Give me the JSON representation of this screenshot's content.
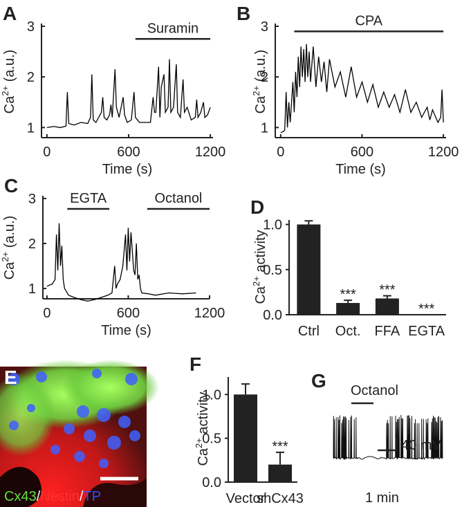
{
  "chart_data": [
    {
      "type": "line",
      "panel": "A",
      "xlabel": "Time (s)",
      "ylabel": [
        "Ca",
        "2+",
        " (a.u.)"
      ],
      "xlim": [
        -40,
        1220
      ],
      "ylim": [
        0.8,
        3
      ],
      "xticks": [
        0,
        600,
        1200
      ],
      "yticks": [
        1,
        2,
        3
      ],
      "color": "#000000",
      "annotations": [
        {
          "label": "Suramin",
          "start": 650,
          "end": 1200,
          "level": 2.75
        }
      ],
      "x": [
        0,
        50,
        100,
        140,
        150,
        160,
        200,
        250,
        300,
        320,
        330,
        340,
        360,
        400,
        410,
        420,
        440,
        460,
        470,
        480,
        500,
        510,
        530,
        560,
        570,
        590,
        620,
        640,
        650,
        680,
        720,
        760,
        780,
        790,
        800,
        820,
        830,
        840,
        860,
        870,
        890,
        900,
        910,
        930,
        950,
        960,
        980,
        1000,
        1010,
        1030,
        1060,
        1090,
        1100,
        1110,
        1130,
        1150,
        1160,
        1180,
        1200
      ],
      "values": [
        1.0,
        1.02,
        1.0,
        1.03,
        1.7,
        1.08,
        1.05,
        1.1,
        1.08,
        1.2,
        2.05,
        1.15,
        1.1,
        1.3,
        1.6,
        1.2,
        1.15,
        1.25,
        1.45,
        1.2,
        2.15,
        1.4,
        1.2,
        1.6,
        1.25,
        1.1,
        1.15,
        1.7,
        1.2,
        1.1,
        1.1,
        1.1,
        1.6,
        1.3,
        1.3,
        2.2,
        1.2,
        1.8,
        2.05,
        1.3,
        1.4,
        2.35,
        1.3,
        1.4,
        2.25,
        1.3,
        1.2,
        1.95,
        1.3,
        1.4,
        1.15,
        1.2,
        1.55,
        1.2,
        1.3,
        1.5,
        1.2,
        1.25,
        1.4
      ]
    },
    {
      "type": "line",
      "panel": "B",
      "xlabel": "Time (s)",
      "ylabel": [
        "Ca",
        "2+",
        " (a.u.)"
      ],
      "xlim": [
        -40,
        1220
      ],
      "ylim": [
        0.8,
        3
      ],
      "xticks": [
        0,
        600,
        1200
      ],
      "yticks": [
        1,
        2,
        3
      ],
      "color": "#000000",
      "annotations": [
        {
          "label": "CPA",
          "start": 100,
          "end": 1200,
          "level": 2.9
        }
      ],
      "x": [
        0,
        20,
        30,
        40,
        50,
        60,
        70,
        90,
        100,
        110,
        120,
        130,
        140,
        150,
        160,
        170,
        180,
        190,
        200,
        210,
        220,
        240,
        260,
        280,
        300,
        320,
        340,
        360,
        400,
        440,
        480,
        520,
        560,
        600,
        640,
        680,
        720,
        760,
        800,
        840,
        880,
        920,
        960,
        1000,
        1040,
        1080,
        1100,
        1120,
        1160,
        1180,
        1190,
        1200
      ],
      "values": [
        0.9,
        0.92,
        0.95,
        1.7,
        1.0,
        1.5,
        1.1,
        1.9,
        1.3,
        2.1,
        1.6,
        2.4,
        1.8,
        2.6,
        2.0,
        2.55,
        1.9,
        2.65,
        2.0,
        2.5,
        1.9,
        2.6,
        1.8,
        2.4,
        1.9,
        2.3,
        1.7,
        2.35,
        1.8,
        2.1,
        1.6,
        2.2,
        1.6,
        1.9,
        1.5,
        1.85,
        1.4,
        1.7,
        1.4,
        1.65,
        1.3,
        1.75,
        1.3,
        1.5,
        1.2,
        1.4,
        1.15,
        1.35,
        1.1,
        1.2,
        1.75,
        1.1
      ]
    },
    {
      "type": "line",
      "panel": "C",
      "xlabel": "Time (s)",
      "ylabel": [
        "Ca",
        "2+",
        " (a.u.)"
      ],
      "xlim": [
        -30,
        1200
      ],
      "ylim": [
        0.77,
        3
      ],
      "xticks": [
        0,
        600,
        1200
      ],
      "yticks": [
        1,
        2,
        3
      ],
      "color": "#000000",
      "annotations": [
        {
          "label": "EGTA",
          "start": 150,
          "end": 460,
          "level": 2.77
        },
        {
          "label": "Octanol",
          "start": 740,
          "end": 1200,
          "level": 2.77
        }
      ],
      "x": [
        0,
        40,
        60,
        70,
        80,
        90,
        100,
        110,
        120,
        130,
        140,
        160,
        200,
        250,
        300,
        350,
        400,
        450,
        480,
        500,
        510,
        520,
        540,
        560,
        580,
        590,
        600,
        610,
        620,
        640,
        650,
        660,
        670,
        680,
        690,
        700,
        750,
        800,
        900,
        1000,
        1100
      ],
      "values": [
        1.05,
        1.1,
        1.2,
        2.2,
        1.4,
        2.45,
        1.5,
        1.95,
        1.2,
        1.0,
        0.95,
        0.85,
        0.8,
        0.75,
        0.72,
        0.75,
        0.8,
        0.85,
        0.9,
        1.5,
        1.0,
        1.1,
        1.2,
        1.5,
        2.2,
        1.4,
        2.35,
        1.6,
        2.25,
        1.4,
        1.3,
        2.0,
        1.2,
        1.3,
        1.0,
        0.9,
        0.88,
        0.85,
        0.9,
        0.88,
        0.9
      ]
    },
    {
      "type": "bar",
      "panel": "D",
      "ylabel": [
        "Ca",
        "2+",
        " activity"
      ],
      "color": "#222222",
      "ylim": [
        0,
        1.05
      ],
      "yticks": [
        {
          "value": 0,
          "label": "0.0"
        },
        {
          "value": 0.5,
          "label": "0.5"
        },
        {
          "value": 1,
          "label": "1.0"
        }
      ],
      "categories": [
        "Ctrl",
        "Oct.",
        "FFA",
        "EGTA"
      ],
      "values": [
        1.0,
        0.13,
        0.18,
        0.0
      ],
      "errors": [
        0.04,
        0.03,
        0.03,
        0.0
      ],
      "significance": [
        null,
        "***",
        "***",
        "***"
      ]
    },
    {
      "type": "bar",
      "panel": "F",
      "ylabel": [
        "Ca",
        "2+",
        " activity"
      ],
      "color": "#222222",
      "ylim": [
        0,
        1.2
      ],
      "yticks": [
        {
          "value": 0,
          "label": "0.0"
        },
        {
          "value": 0.5,
          "label": "0.5"
        },
        {
          "value": 1,
          "label": "1.0"
        }
      ],
      "categories": [
        "Vector",
        "shCx43"
      ],
      "values": [
        1.0,
        0.2
      ],
      "errors": [
        0.12,
        0.14
      ],
      "significance": [
        null,
        "***"
      ]
    }
  ],
  "image_panel": {
    "panel": "E",
    "caption": [
      "Cx43",
      "/",
      "Nestin",
      "/",
      "TP"
    ]
  },
  "trace_panel": {
    "panel": "G",
    "annotation": "Octanol",
    "scale_y": "40 mV",
    "scale_x": "1 min"
  }
}
